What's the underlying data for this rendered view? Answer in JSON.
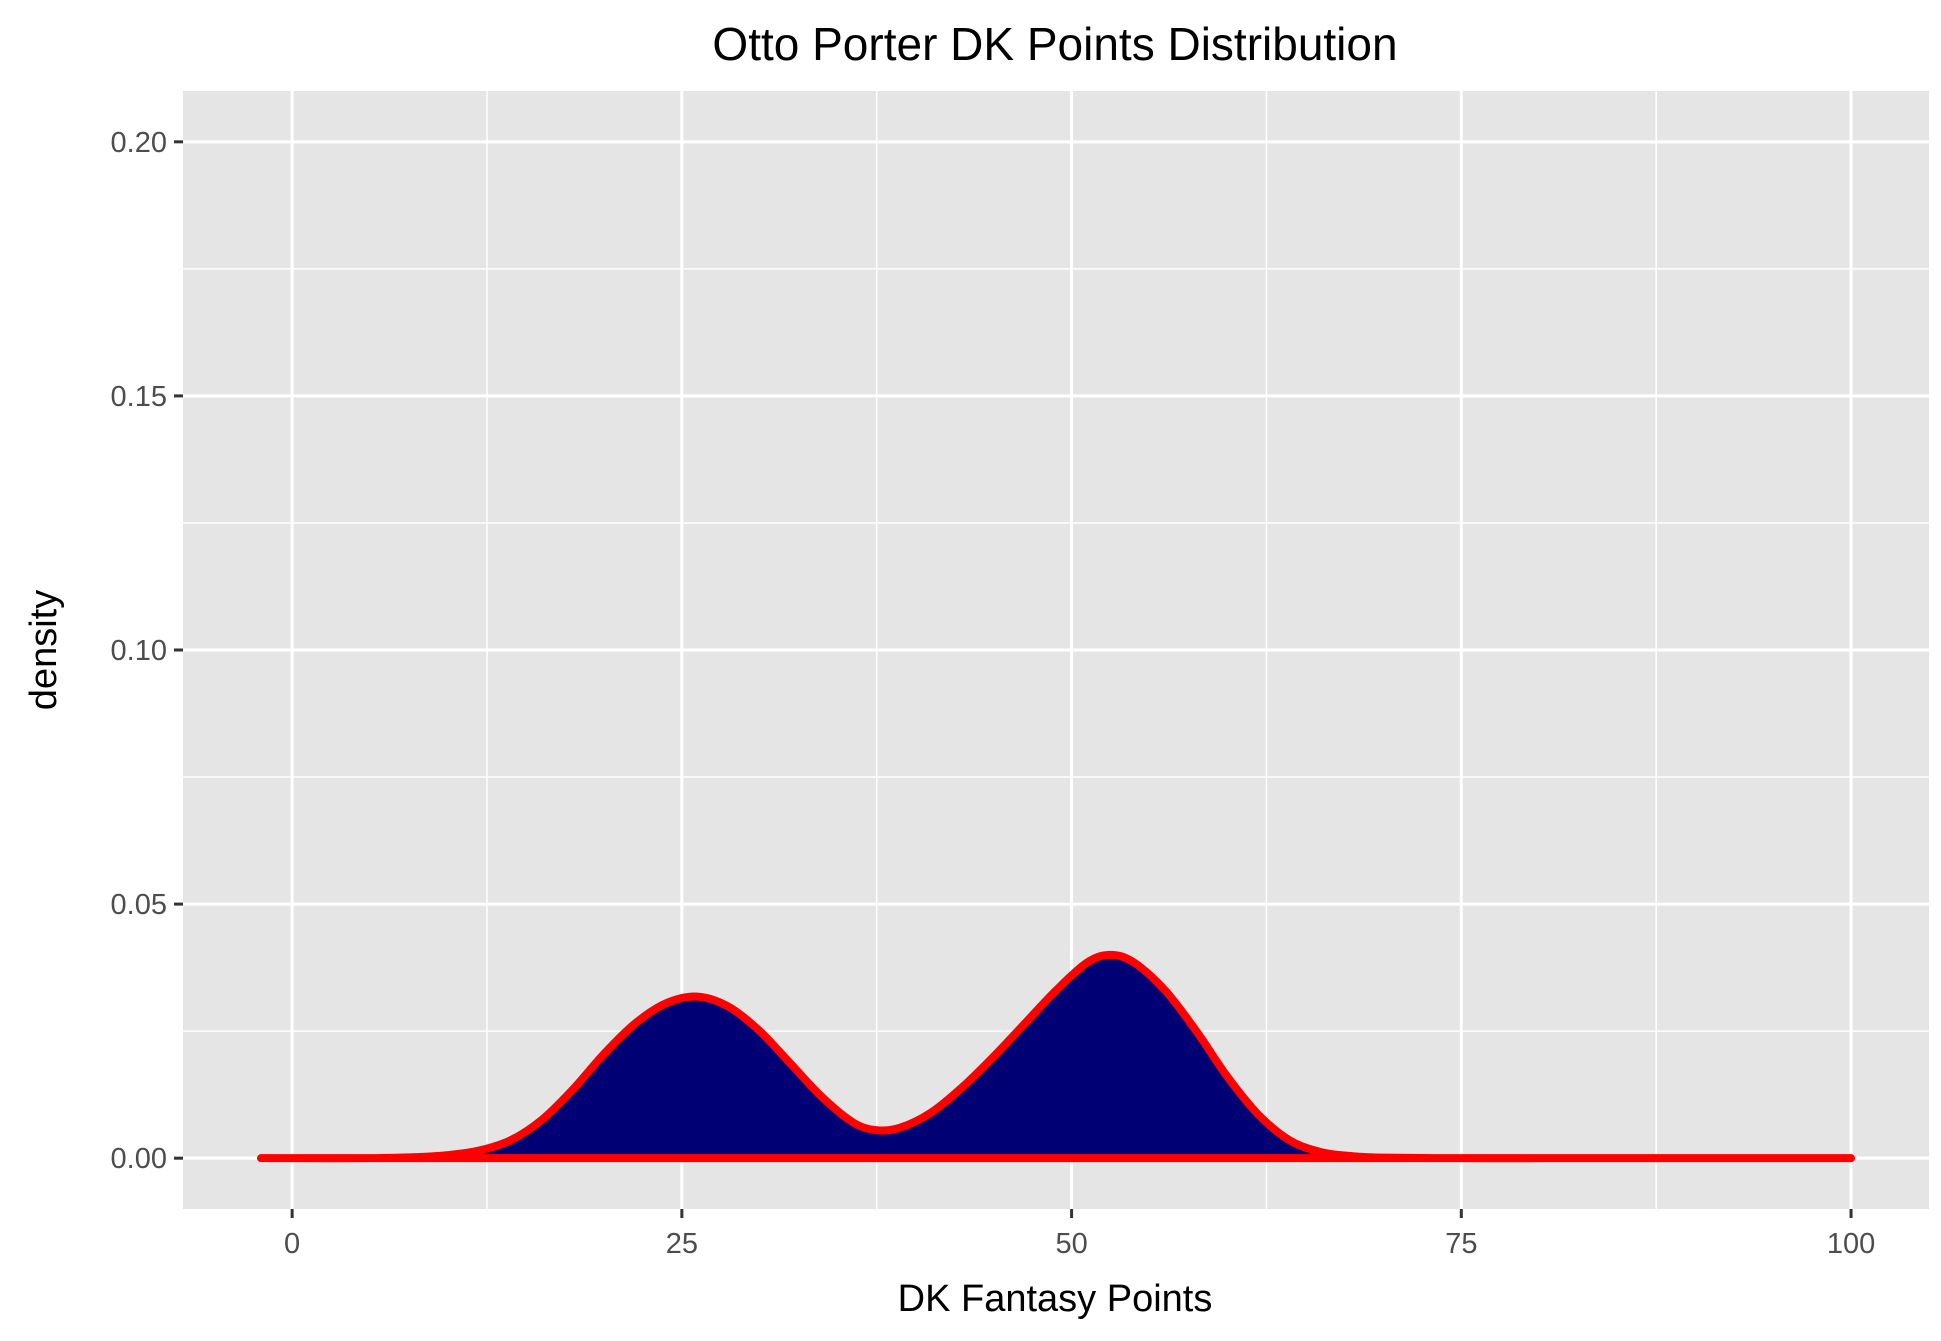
{
  "chart_data": {
    "type": "area",
    "title": "Otto Porter DK Points Distribution",
    "xlabel": "DK Fantasy Points",
    "ylabel": "density",
    "xlim": [
      -7,
      105
    ],
    "ylim": [
      -0.01,
      0.21
    ],
    "x_ticks": [
      0,
      25,
      50,
      75,
      100
    ],
    "x_tick_labels": [
      "0",
      "25",
      "50",
      "75",
      "100"
    ],
    "y_ticks": [
      0.0,
      0.05,
      0.1,
      0.15,
      0.2
    ],
    "y_tick_labels": [
      "0.00",
      "0.05",
      "0.10",
      "0.15",
      "0.20"
    ],
    "grid": true,
    "series": [
      {
        "x": [
          -2,
          0,
          5,
          8,
          10,
          12,
          14,
          16,
          18,
          20,
          22,
          24,
          26,
          28,
          30,
          32,
          34,
          36,
          37.5,
          39,
          41,
          43,
          45,
          47,
          49,
          51,
          52.5,
          54,
          56,
          58,
          60,
          62,
          64,
          66,
          68,
          70,
          75,
          80,
          90,
          100
        ],
        "y": [
          0.0,
          0.0,
          0.0,
          0.0002,
          0.0006,
          0.0015,
          0.0035,
          0.0075,
          0.0135,
          0.0205,
          0.0265,
          0.0305,
          0.0318,
          0.0298,
          0.025,
          0.0185,
          0.012,
          0.007,
          0.0055,
          0.006,
          0.009,
          0.014,
          0.02,
          0.0265,
          0.033,
          0.0385,
          0.04,
          0.0385,
          0.033,
          0.025,
          0.016,
          0.0085,
          0.0035,
          0.0012,
          0.0004,
          0.0001,
          0.0,
          0.0,
          0.0,
          0.0
        ]
      }
    ],
    "colors": {
      "fill": "#000075",
      "line": "#ff0000",
      "panel": "#e5e5e5",
      "grid": "#ffffff",
      "tick_text": "#4d4d4d",
      "tick_mark": "#333333"
    }
  }
}
